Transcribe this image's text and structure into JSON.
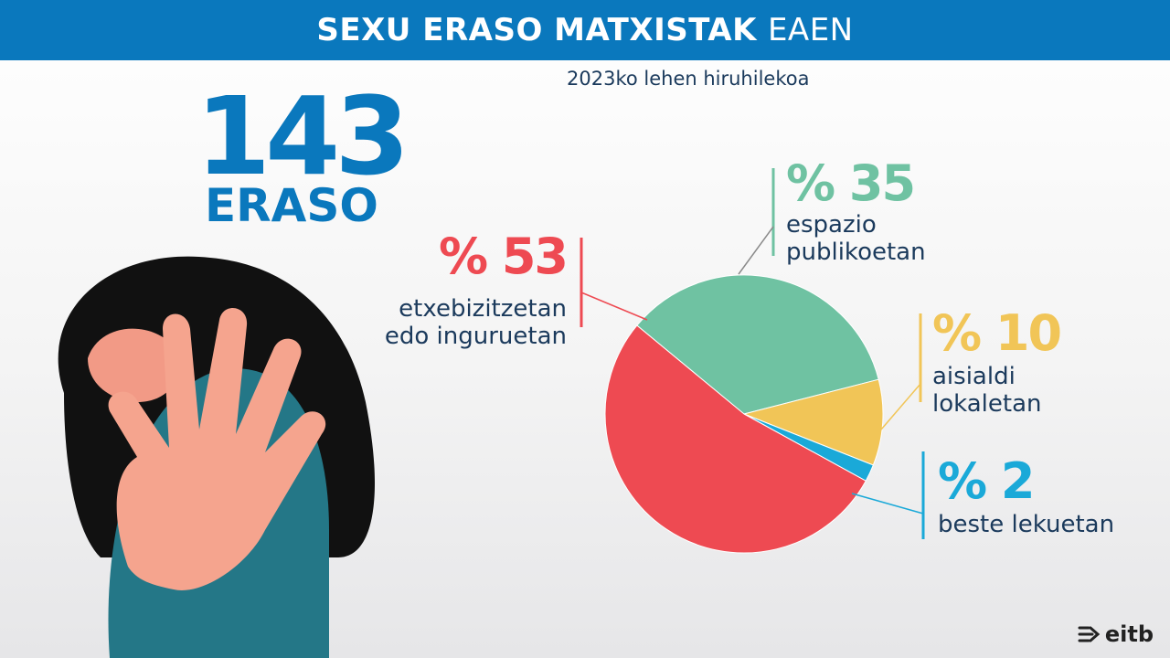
{
  "header": {
    "title_bold": "SEXU ERASO MATXISTAK",
    "title_light": "EAEN"
  },
  "subtitle": "2023ko lehen hiruhilekoa",
  "total": {
    "number": "143",
    "label": "ERASO"
  },
  "logo": {
    "text": "eitb"
  },
  "colors": {
    "header_bg": "#0a78bd",
    "red": "#ee4a52",
    "green": "#6fc2a2",
    "yellow": "#f1c557",
    "blue": "#1aa9d8",
    "text": "#1b3a5c"
  },
  "callouts": {
    "red": {
      "pct": "% 53",
      "line1": "etxebizitzetan",
      "line2": "edo inguruetan"
    },
    "green": {
      "pct": "% 35",
      "line1": "espazio",
      "line2": "publikoetan"
    },
    "yellow": {
      "pct": "% 10",
      "line1": "aisialdi",
      "line2": "lokaletan"
    },
    "blue": {
      "pct": "% 2",
      "line1": "beste lekuetan"
    }
  },
  "chart_data": {
    "type": "pie",
    "title": "SEXU ERASO MATXISTAK EAEN",
    "subtitle": "2023ko lehen hiruhilekoa",
    "slices": [
      {
        "label": "espazio publikoetan",
        "value": 35,
        "color": "#6fc2a2"
      },
      {
        "label": "aisialdi lokaletan",
        "value": 10,
        "color": "#f1c557"
      },
      {
        "label": "beste lekuetan",
        "value": 2,
        "color": "#1aa9d8"
      },
      {
        "label": "etxebizitzetan edo inguruetan",
        "value": 53,
        "color": "#ee4a52"
      }
    ]
  }
}
